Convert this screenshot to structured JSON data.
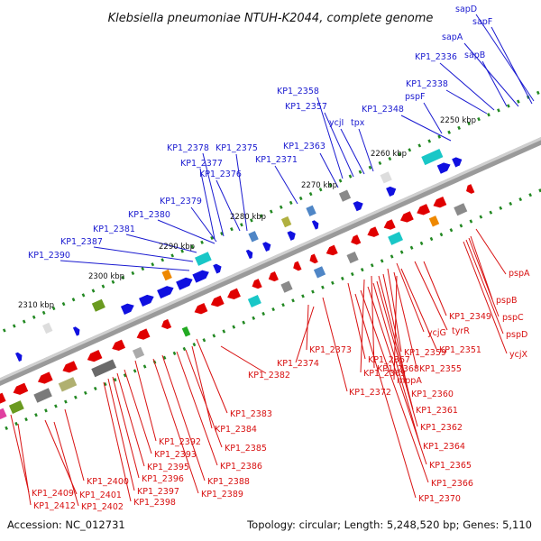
{
  "title": "Klebsiella pneumoniae NTUH-K2044, complete genome",
  "footer": {
    "accession": "Accession: NC_012731",
    "summary": "Topology: circular; Length: 5,248,520 bp; Genes: 5,110"
  },
  "ticks": [
    "2250 kbp",
    "2260 kbp",
    "2270 kbp",
    "2280 kbp",
    "2290 kbp",
    "2300 kbp",
    "2310 kbp"
  ],
  "colors": {
    "forward": "#1010e0",
    "reverse": "#e00000",
    "backbone": "#888888",
    "tick": "#228822"
  },
  "labels_forward": [
    "sapD",
    "sapF",
    "sapA",
    "sapB",
    "KP1_2336",
    "KP1_2338",
    "pspF",
    "KP1_2348",
    "KP1_2358",
    "KP1_2357",
    "ycjI",
    "tpx",
    "KP1_2363",
    "KP1_2378",
    "KP1_2375",
    "KP1_2377",
    "KP1_2371",
    "KP1_2376",
    "KP1_2379",
    "KP1_2380",
    "KP1_2381",
    "KP1_2387",
    "KP1_2390"
  ],
  "labels_reverse": [
    "pspA",
    "pspB",
    "pspC",
    "pspD",
    "ycjX",
    "KP1_2349",
    "tyrR",
    "ycjG",
    "KP1_2351",
    "KP1_2373",
    "KP1_2359",
    "KP1_2367",
    "KP1_2355",
    "KP1_2374",
    "KP1_2368",
    "KP1_2369",
    "mppA",
    "KP1_2382",
    "KP1_2372",
    "KP1_2360",
    "KP1_2361",
    "KP1_2383",
    "KP1_2384",
    "KP1_2362",
    "KP1_2392",
    "KP1_2385",
    "KP1_2364",
    "KP1_2393",
    "KP1_2386",
    "KP1_2395",
    "KP1_2365",
    "KP1_2396",
    "KP1_2388",
    "KP1_2400",
    "KP1_2366",
    "KP1_2397",
    "KP1_2389",
    "KP1_2409",
    "KP1_2401",
    "KP1_2370",
    "KP1_2398",
    "KP1_2412",
    "KP1_2402"
  ]
}
